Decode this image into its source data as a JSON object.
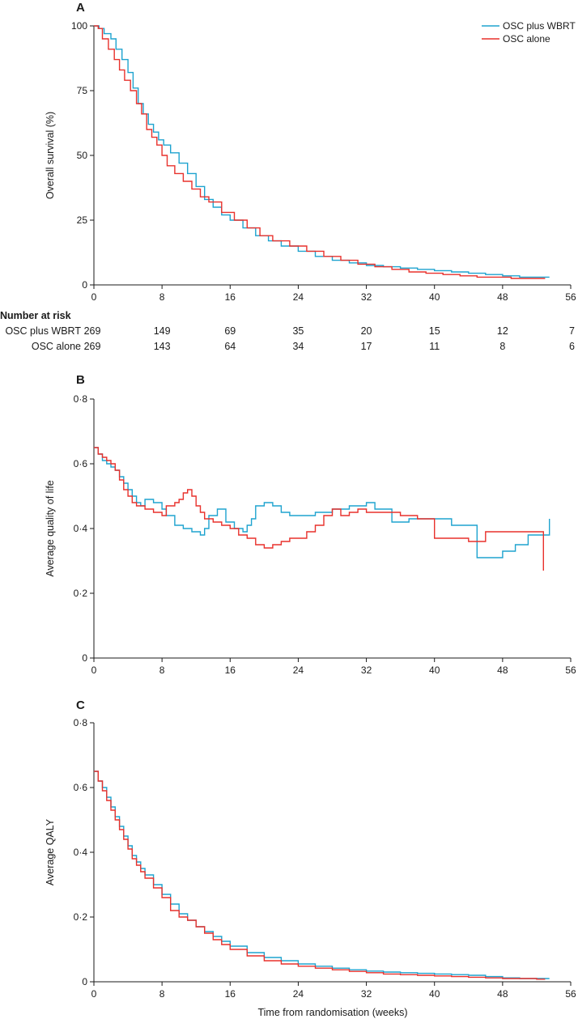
{
  "colors": {
    "wbrt": "#1ea3cf",
    "alone": "#e8312c",
    "axis": "#1a1a1a"
  },
  "legend": [
    {
      "label": "OSC plus WBRT",
      "color": "#1ea3cf"
    },
    {
      "label": "OSC alone",
      "color": "#e8312c"
    }
  ],
  "xlabel": "Time from randomisation (weeks)",
  "number_at_risk": {
    "title": "Number at risk",
    "times": [
      0,
      8,
      16,
      24,
      32,
      40,
      48,
      56
    ],
    "rows": [
      {
        "label": "OSC plus WBRT",
        "values": [
          "269",
          "149",
          "69",
          "35",
          "20",
          "15",
          "12",
          "7"
        ]
      },
      {
        "label": "OSC alone",
        "values": [
          "269",
          "143",
          "64",
          "34",
          "17",
          "11",
          "8",
          "6"
        ]
      }
    ]
  },
  "chart_data": [
    {
      "panel": "A",
      "type": "line",
      "step": true,
      "ylabel": "Overall survival (%)",
      "xlim": [
        0,
        56
      ],
      "ylim": [
        0,
        100
      ],
      "xticks": [
        0,
        8,
        16,
        24,
        32,
        40,
        48,
        56
      ],
      "yticks": [
        0,
        25,
        50,
        75,
        100
      ],
      "ytick_labels": [
        "0",
        "25",
        "50",
        "75",
        "100"
      ],
      "series": [
        {
          "name": "OSC plus WBRT",
          "x": [
            0,
            0.6,
            1.2,
            2,
            2.6,
            3.3,
            4,
            4.6,
            5.2,
            5.8,
            6.4,
            7,
            7.6,
            8.2,
            9,
            10,
            11,
            12,
            13,
            14,
            15,
            16,
            17.5,
            19,
            20.5,
            22,
            24,
            26,
            28,
            30,
            32,
            34,
            36,
            38,
            40,
            42,
            44,
            46,
            48,
            50,
            52,
            53.5
          ],
          "y": [
            100,
            99,
            97,
            95,
            91,
            87,
            82,
            76,
            70,
            66,
            62,
            59,
            56,
            54,
            51,
            47,
            43,
            38,
            33,
            30,
            27,
            25,
            22,
            19,
            17,
            15,
            13,
            11,
            9.5,
            8.5,
            7.5,
            7,
            6.5,
            6,
            5.5,
            5,
            4.5,
            4,
            3.5,
            3,
            3,
            3
          ]
        },
        {
          "name": "OSC alone",
          "x": [
            0,
            0.5,
            1,
            1.7,
            2.4,
            3,
            3.6,
            4.3,
            5,
            5.6,
            6.2,
            6.8,
            7.4,
            8,
            8.6,
            9.5,
            10.5,
            11.5,
            12.5,
            13.5,
            15,
            16.5,
            18,
            19.5,
            21,
            23,
            25,
            27,
            29,
            31,
            33,
            35,
            37,
            39,
            41,
            43,
            45,
            47,
            49,
            51,
            53
          ],
          "y": [
            100,
            99,
            95,
            91,
            87,
            83,
            79,
            75,
            70,
            66,
            60,
            57,
            54,
            50,
            46,
            43,
            40,
            37,
            34,
            32,
            28,
            25,
            22,
            19,
            17,
            15,
            13,
            11,
            9.5,
            8,
            7,
            6,
            5,
            4.5,
            4,
            3.5,
            3,
            3,
            2.5,
            2.5,
            2.5
          ]
        }
      ]
    },
    {
      "panel": "B",
      "type": "line",
      "step": true,
      "ylabel": "Average quality of life",
      "xlim": [
        0,
        56
      ],
      "ylim": [
        0,
        0.8
      ],
      "xticks": [
        0,
        8,
        16,
        24,
        32,
        40,
        48,
        56
      ],
      "yticks": [
        0,
        0.2,
        0.4,
        0.6,
        0.8
      ],
      "ytick_labels": [
        "0",
        "0·2",
        "0·4",
        "0·6",
        "0·8"
      ],
      "series": [
        {
          "name": "OSC plus WBRT",
          "x": [
            0,
            0.5,
            1,
            1.5,
            2,
            2.5,
            3,
            3.5,
            4,
            4.5,
            5,
            5.5,
            6,
            7,
            8,
            8.5,
            9.5,
            10.5,
            11.5,
            12.5,
            13,
            13.5,
            14.5,
            15.5,
            16.5,
            17.5,
            18,
            18.5,
            19,
            20,
            21,
            22,
            23,
            24,
            26,
            28,
            30,
            32,
            33,
            35,
            36,
            37,
            39,
            40,
            42,
            44,
            45,
            47,
            48,
            49.5,
            51,
            53.5,
            53.5
          ],
          "y": [
            0.65,
            0.63,
            0.61,
            0.6,
            0.59,
            0.58,
            0.56,
            0.54,
            0.52,
            0.5,
            0.48,
            0.47,
            0.49,
            0.48,
            0.46,
            0.44,
            0.41,
            0.4,
            0.39,
            0.38,
            0.4,
            0.44,
            0.46,
            0.42,
            0.4,
            0.39,
            0.41,
            0.43,
            0.47,
            0.48,
            0.47,
            0.45,
            0.44,
            0.44,
            0.45,
            0.46,
            0.47,
            0.48,
            0.46,
            0.42,
            0.42,
            0.43,
            0.43,
            0.43,
            0.41,
            0.41,
            0.31,
            0.31,
            0.33,
            0.35,
            0.38,
            0.38,
            0.43
          ]
        },
        {
          "name": "OSC alone",
          "x": [
            0,
            0.5,
            1,
            1.5,
            2,
            2.5,
            3,
            3.5,
            4,
            4.5,
            5,
            6,
            7,
            8,
            8.5,
            9.5,
            10,
            10.5,
            11,
            11.5,
            12,
            12.5,
            13,
            14,
            15,
            16,
            17,
            18,
            19,
            20,
            21,
            22,
            23,
            24,
            25,
            26,
            27,
            28,
            29,
            30,
            31,
            32,
            34,
            36,
            38,
            40,
            42,
            44,
            46,
            48,
            50,
            52,
            52.8,
            52.8
          ],
          "y": [
            0.65,
            0.63,
            0.62,
            0.61,
            0.6,
            0.58,
            0.55,
            0.52,
            0.5,
            0.48,
            0.47,
            0.46,
            0.45,
            0.44,
            0.47,
            0.48,
            0.49,
            0.51,
            0.52,
            0.5,
            0.47,
            0.45,
            0.43,
            0.42,
            0.41,
            0.4,
            0.38,
            0.37,
            0.35,
            0.34,
            0.35,
            0.36,
            0.37,
            0.37,
            0.39,
            0.41,
            0.44,
            0.46,
            0.44,
            0.45,
            0.46,
            0.45,
            0.45,
            0.44,
            0.43,
            0.37,
            0.37,
            0.36,
            0.39,
            0.39,
            0.39,
            0.39,
            0.39,
            0.27
          ]
        }
      ]
    },
    {
      "panel": "C",
      "type": "line",
      "step": true,
      "ylabel": "Average QALY",
      "xlim": [
        0,
        56
      ],
      "ylim": [
        0,
        0.8
      ],
      "xticks": [
        0,
        8,
        16,
        24,
        32,
        40,
        48,
        56
      ],
      "yticks": [
        0,
        0.2,
        0.4,
        0.6,
        0.8
      ],
      "ytick_labels": [
        "0",
        "0·2",
        "0·4",
        "0·6",
        "0·8"
      ],
      "series": [
        {
          "name": "OSC plus WBRT",
          "x": [
            0,
            0.5,
            1,
            1.5,
            2,
            2.5,
            3,
            3.5,
            4,
            4.5,
            5,
            5.5,
            6,
            7,
            8,
            9,
            10,
            11,
            12,
            13,
            14,
            15,
            16,
            18,
            20,
            22,
            24,
            26,
            28,
            30,
            32,
            34,
            36,
            38,
            40,
            42,
            44,
            46,
            48,
            50,
            52,
            53.5
          ],
          "y": [
            0.65,
            0.62,
            0.6,
            0.57,
            0.54,
            0.51,
            0.48,
            0.45,
            0.42,
            0.39,
            0.37,
            0.35,
            0.33,
            0.3,
            0.27,
            0.24,
            0.21,
            0.19,
            0.17,
            0.155,
            0.14,
            0.125,
            0.11,
            0.09,
            0.075,
            0.065,
            0.055,
            0.048,
            0.042,
            0.037,
            0.033,
            0.03,
            0.028,
            0.026,
            0.024,
            0.022,
            0.02,
            0.016,
            0.012,
            0.01,
            0.01,
            0.01
          ]
        },
        {
          "name": "OSC alone",
          "x": [
            0,
            0.5,
            1,
            1.5,
            2,
            2.5,
            3,
            3.5,
            4,
            4.5,
            5,
            5.5,
            6,
            7,
            8,
            9,
            10,
            11,
            12,
            13,
            14,
            15,
            16,
            18,
            20,
            22,
            24,
            26,
            28,
            30,
            32,
            34,
            36,
            38,
            40,
            42,
            44,
            46,
            48,
            50,
            52,
            53
          ],
          "y": [
            0.65,
            0.62,
            0.59,
            0.56,
            0.53,
            0.5,
            0.47,
            0.44,
            0.41,
            0.38,
            0.36,
            0.34,
            0.32,
            0.29,
            0.26,
            0.22,
            0.2,
            0.19,
            0.17,
            0.15,
            0.13,
            0.115,
            0.1,
            0.08,
            0.065,
            0.055,
            0.048,
            0.042,
            0.037,
            0.032,
            0.028,
            0.024,
            0.022,
            0.02,
            0.018,
            0.016,
            0.014,
            0.012,
            0.01,
            0.01,
            0.008,
            0.008
          ]
        }
      ]
    }
  ]
}
